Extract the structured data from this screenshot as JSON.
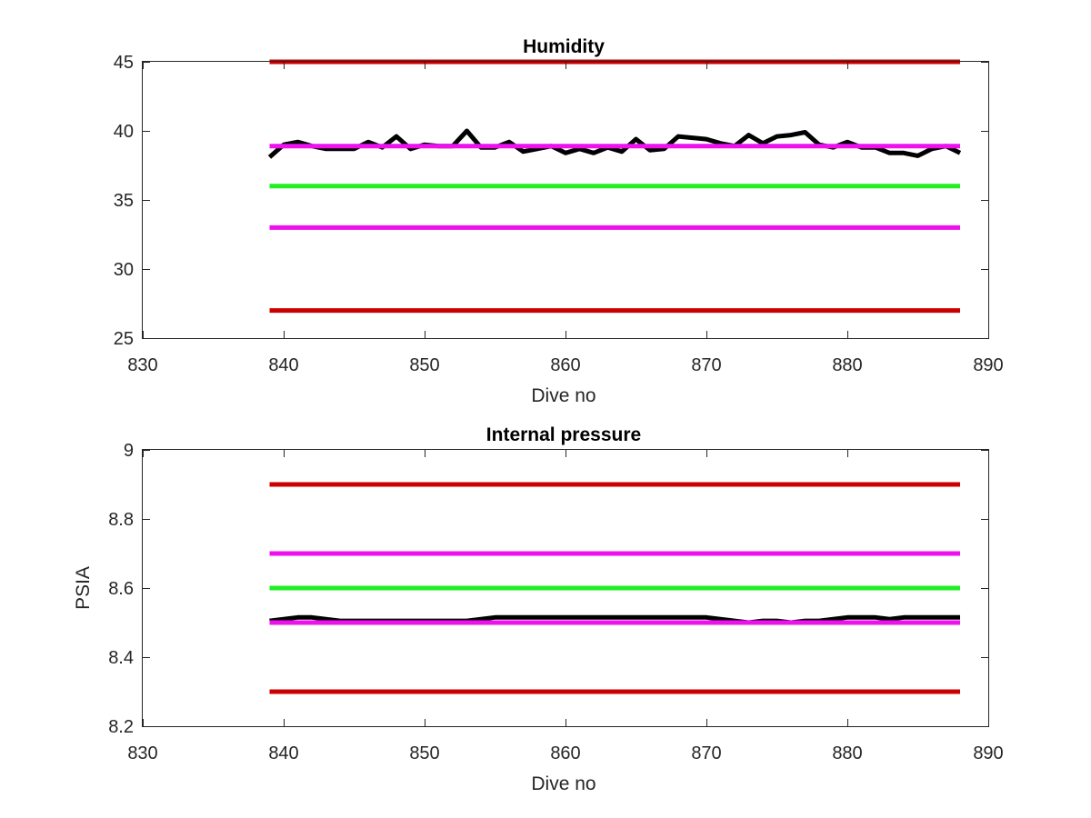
{
  "chart_data": [
    {
      "type": "line",
      "title": "Humidity",
      "xlabel": "Dive no",
      "ylabel": "",
      "xlim": [
        830,
        890
      ],
      "ylim": [
        25,
        45
      ],
      "xticks": [
        830,
        840,
        850,
        860,
        870,
        880,
        890
      ],
      "yticks": [
        25,
        30,
        35,
        40,
        45
      ],
      "grid": false,
      "series": [
        {
          "color": "#cc0000",
          "x": [
            839,
            888
          ],
          "y": [
            45,
            45
          ]
        },
        {
          "color": "#cc0000",
          "x": [
            839,
            888
          ],
          "y": [
            27,
            27
          ]
        },
        {
          "color": "#ee11ee",
          "x": [
            839,
            888
          ],
          "y": [
            33,
            33
          ]
        },
        {
          "color": "#22ee22",
          "x": [
            839,
            888
          ],
          "y": [
            36,
            36
          ]
        },
        {
          "color": "#000000",
          "x": [
            839,
            840,
            841,
            842,
            843,
            844,
            845,
            846,
            847,
            848,
            849,
            850,
            851,
            852,
            853,
            854,
            855,
            856,
            857,
            858,
            859,
            860,
            861,
            862,
            863,
            864,
            865,
            866,
            867,
            868,
            869,
            870,
            871,
            872,
            873,
            874,
            875,
            876,
            877,
            878,
            879,
            880,
            881,
            882,
            883,
            884,
            885,
            886,
            887,
            888
          ],
          "y": [
            38.1,
            39.0,
            39.2,
            38.9,
            38.7,
            38.7,
            38.7,
            39.2,
            38.8,
            39.6,
            38.7,
            39.0,
            38.9,
            38.9,
            40.0,
            38.8,
            38.8,
            39.2,
            38.5,
            38.7,
            38.9,
            38.4,
            38.7,
            38.4,
            38.8,
            38.5,
            39.4,
            38.6,
            38.7,
            39.6,
            39.5,
            39.4,
            39.1,
            38.9,
            39.7,
            39.1,
            39.6,
            39.7,
            39.9,
            39.0,
            38.8,
            39.2,
            38.8,
            38.8,
            38.4,
            38.4,
            38.2,
            38.7,
            38.9,
            38.4
          ]
        },
        {
          "color": "#ee11ee",
          "x": [
            839,
            888
          ],
          "y": [
            38.9,
            38.9
          ]
        }
      ]
    },
    {
      "type": "line",
      "title": "Internal pressure",
      "xlabel": "Dive no",
      "ylabel": "PSIA",
      "xlim": [
        830,
        890
      ],
      "ylim": [
        8.2,
        9
      ],
      "xticks": [
        830,
        840,
        850,
        860,
        870,
        880,
        890
      ],
      "yticks": [
        8.2,
        8.4,
        8.6,
        8.8,
        9
      ],
      "grid": false,
      "series": [
        {
          "color": "#cc0000",
          "x": [
            839,
            888
          ],
          "y": [
            8.9,
            8.9
          ]
        },
        {
          "color": "#ee11ee",
          "x": [
            839,
            888
          ],
          "y": [
            8.7,
            8.7
          ]
        },
        {
          "color": "#22ee22",
          "x": [
            839,
            888
          ],
          "y": [
            8.6,
            8.6
          ]
        },
        {
          "color": "#000000",
          "x": [
            839,
            840,
            841,
            842,
            843,
            844,
            845,
            846,
            847,
            848,
            849,
            850,
            851,
            852,
            853,
            854,
            855,
            856,
            857,
            858,
            859,
            860,
            861,
            862,
            863,
            864,
            865,
            866,
            867,
            868,
            869,
            870,
            871,
            872,
            873,
            874,
            875,
            876,
            877,
            878,
            879,
            880,
            881,
            882,
            883,
            884,
            885,
            886,
            887,
            888
          ],
          "y": [
            8.505,
            8.51,
            8.515,
            8.515,
            8.51,
            8.505,
            8.505,
            8.505,
            8.505,
            8.505,
            8.505,
            8.505,
            8.505,
            8.505,
            8.505,
            8.51,
            8.515,
            8.515,
            8.515,
            8.515,
            8.515,
            8.515,
            8.515,
            8.515,
            8.515,
            8.515,
            8.515,
            8.515,
            8.515,
            8.515,
            8.515,
            8.515,
            8.51,
            8.505,
            8.5,
            8.505,
            8.505,
            8.5,
            8.505,
            8.505,
            8.51,
            8.515,
            8.515,
            8.515,
            8.51,
            8.515,
            8.515,
            8.515,
            8.515,
            8.515
          ]
        },
        {
          "color": "#ee11ee",
          "x": [
            839,
            888
          ],
          "y": [
            8.5,
            8.5
          ]
        },
        {
          "color": "#cc0000",
          "x": [
            839,
            888
          ],
          "y": [
            8.3,
            8.3
          ]
        }
      ]
    }
  ]
}
